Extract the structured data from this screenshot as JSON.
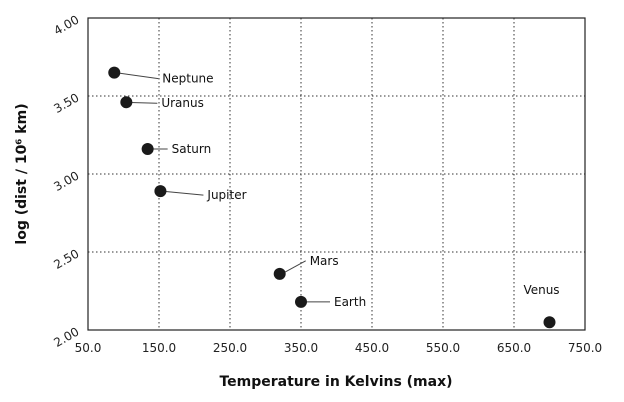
{
  "chart_data": {
    "type": "scatter",
    "title": "",
    "xlabel": "Temperature in Kelvins (max)",
    "ylabel": "log (dist / 10⁶ km)",
    "xlim": [
      50,
      750
    ],
    "ylim": [
      2.0,
      4.0
    ],
    "x_ticks": [
      50,
      150,
      250,
      350,
      450,
      550,
      650,
      750
    ],
    "x_tick_labels": [
      "50.0",
      "150.0",
      "250.0",
      "350.0",
      "450.0",
      "550.0",
      "650.0",
      "750.0"
    ],
    "y_ticks": [
      2.0,
      2.5,
      3.0,
      3.5,
      4.0
    ],
    "y_tick_labels": [
      "2.00",
      "2.50",
      "3.00",
      "3.50",
      "4.00"
    ],
    "grid": true,
    "points": [
      {
        "label": "Neptune",
        "x": 87,
        "y": 3.65
      },
      {
        "label": "Uranus",
        "x": 104,
        "y": 3.46
      },
      {
        "label": "Saturn",
        "x": 134,
        "y": 3.16
      },
      {
        "label": "Jupiter",
        "x": 152,
        "y": 2.89
      },
      {
        "label": "Mars",
        "x": 320,
        "y": 2.36
      },
      {
        "label": "Earth",
        "x": 350,
        "y": 2.18
      },
      {
        "label": "Venus",
        "x": 700,
        "y": 2.05
      }
    ]
  }
}
